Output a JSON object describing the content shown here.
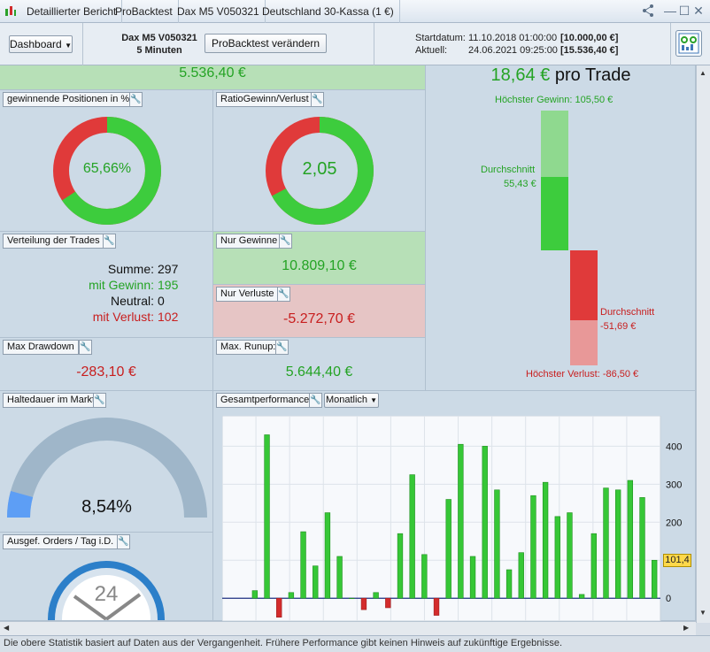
{
  "titlebar": {
    "tabs": [
      "Detaillierter Bericht",
      "ProBacktest",
      "Dax M5 V050321",
      "Deutschland 30-Kassa (1 €)"
    ]
  },
  "toolbar": {
    "dashboard_label": "Dashboard",
    "strategy_name": "Dax M5 V050321",
    "timeframe": "5 Minuten",
    "change_button": "ProBacktest verändern",
    "start_label": "Startdatum:",
    "start_value": "11.10.2018 01:00:00",
    "start_capital": "[10.000,00 €]",
    "current_label": "Aktuell:",
    "current_value": "24.06.2021 09:25:00",
    "current_capital": "[15.536,40 €]"
  },
  "top_gain": "5.536,40 €",
  "per_trade": {
    "value": "18,64 €",
    "suffix": "pro Trade",
    "highest_gain": "Höchster Gewinn: 105,50 €",
    "avg_gain_label": "Durchschnitt",
    "avg_gain_value": "55,43 €",
    "avg_loss_label": "Durchschnitt",
    "avg_loss_value": "-51,69 €",
    "highest_loss": "Höchster Verlust: -86,50 €"
  },
  "win_pct": {
    "title": "gewinnende Positionen in %",
    "value": "65,66%",
    "fraction": 0.6566
  },
  "ratio": {
    "title": "RatioGewinn/Verlust",
    "value": "2,05",
    "fraction": 0.672
  },
  "distribution": {
    "title": "Verteilung der Trades",
    "rows": [
      {
        "label": "Summe:",
        "value": "297"
      },
      {
        "label": "mit Gewinn:",
        "value": "195"
      },
      {
        "label": "Neutral:",
        "value": "0"
      },
      {
        "label": "mit Verlust:",
        "value": "102"
      }
    ]
  },
  "gains_only": {
    "title": "Nur Gewinne",
    "value": "10.809,10 €"
  },
  "losses_only": {
    "title": "Nur Verluste",
    "value": "-5.272,70 €"
  },
  "drawdown": {
    "title": "Max Drawdown",
    "value": "-283,10 €"
  },
  "runup": {
    "title": "Max. Runup:",
    "value": "5.644,40 €"
  },
  "holding": {
    "title": "Haltedauer im Markt",
    "value": "8,54%",
    "fraction": 0.0854
  },
  "orders": {
    "title": "Ausgef. Orders / Tag i.D.",
    "value": "24"
  },
  "performance": {
    "title": "Gesamtperformance",
    "period": "Monatlich",
    "marker": "101,4"
  },
  "chart_data": {
    "type": "bar",
    "ylim": [
      -60,
      480
    ],
    "yticks": [
      "0",
      "100",
      "200",
      "300",
      "400"
    ],
    "values": [
      20,
      430,
      -50,
      15,
      175,
      85,
      225,
      110,
      0,
      -30,
      15,
      -25,
      170,
      325,
      115,
      -45,
      260,
      405,
      110,
      400,
      285,
      75,
      120,
      270,
      305,
      215,
      225,
      10,
      170,
      290,
      285,
      310,
      265,
      100
    ],
    "colors": {
      "positive": "#36c736",
      "negative": "#d42c2c"
    }
  },
  "status_text": "Die obere Statistik basiert auf Daten aus der Vergangenheit. Frühere Performance gibt keinen Hinweis auf zukünftige Ergebnisse."
}
